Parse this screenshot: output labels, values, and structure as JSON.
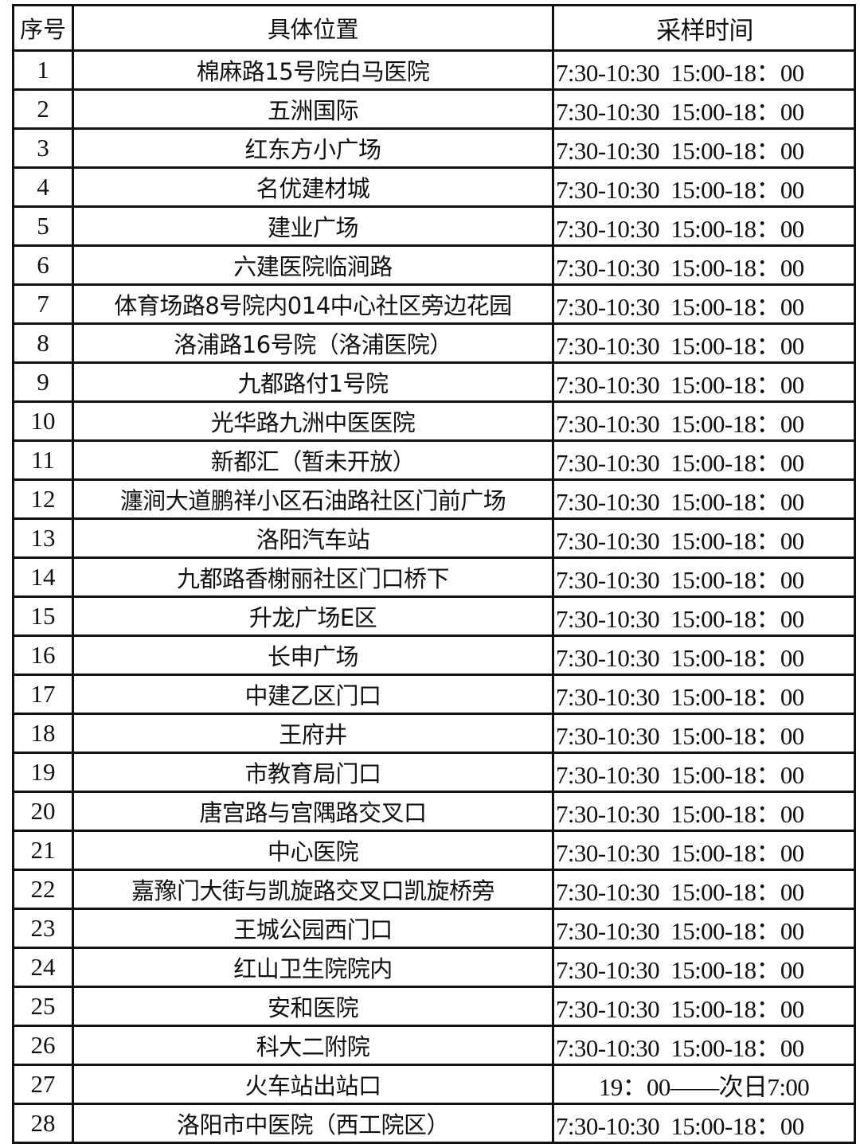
{
  "table": {
    "headers": [
      "序号",
      "具体位置",
      "采样时间"
    ],
    "rows": [
      {
        "no": "1",
        "location": "棉麻路15号院白马医院",
        "time": "7:30-10:30  15:00-18：00"
      },
      {
        "no": "2",
        "location": "五洲国际",
        "time": "7:30-10:30  15:00-18：00"
      },
      {
        "no": "3",
        "location": "红东方小广场",
        "time": "7:30-10:30  15:00-18：00"
      },
      {
        "no": "4",
        "location": "名优建材城",
        "time": "7:30-10:30  15:00-18：00"
      },
      {
        "no": "5",
        "location": "建业广场",
        "time": "7:30-10:30  15:00-18：00"
      },
      {
        "no": "6",
        "location": "六建医院临涧路",
        "time": "7:30-10:30  15:00-18：00"
      },
      {
        "no": "7",
        "location": "体育场路8号院内014中心社区旁边花园",
        "time": "7:30-10:30  15:00-18：00"
      },
      {
        "no": "8",
        "location": "洛浦路16号院（洛浦医院）",
        "time": "7:30-10:30  15:00-18：00"
      },
      {
        "no": "9",
        "location": "九都路付1号院",
        "time": "7:30-10:30  15:00-18：00"
      },
      {
        "no": "10",
        "location": "光华路九洲中医医院",
        "time": "7:30-10:30  15:00-18：00"
      },
      {
        "no": "11",
        "location": "新都汇（暂未开放）",
        "time": "7:30-10:30  15:00-18：00"
      },
      {
        "no": "12",
        "location": "瀍涧大道鹏祥小区石油路社区门前广场",
        "time": "7:30-10:30  15:00-18：00"
      },
      {
        "no": "13",
        "location": "洛阳汽车站",
        "time": "7:30-10:30  15:00-18：00"
      },
      {
        "no": "14",
        "location": "九都路香榭丽社区门口桥下",
        "time": "7:30-10:30  15:00-18：00"
      },
      {
        "no": "15",
        "location": "升龙广场E区",
        "time": "7:30-10:30  15:00-18：00"
      },
      {
        "no": "16",
        "location": "长申广场",
        "time": "7:30-10:30  15:00-18：00"
      },
      {
        "no": "17",
        "location": "中建乙区门口",
        "time": "7:30-10:30  15:00-18：00"
      },
      {
        "no": "18",
        "location": "王府井",
        "time": "7:30-10:30  15:00-18：00"
      },
      {
        "no": "19",
        "location": "市教育局门口",
        "time": "7:30-10:30  15:00-18：00"
      },
      {
        "no": "20",
        "location": "唐宫路与宫隅路交叉口",
        "time": "7:30-10:30  15:00-18：00"
      },
      {
        "no": "21",
        "location": "中心医院",
        "time": "7:30-10:30  15:00-18：00"
      },
      {
        "no": "22",
        "location": "嘉豫门大街与凯旋路交叉口凯旋桥旁",
        "time": "7:30-10:30  15:00-18：00"
      },
      {
        "no": "23",
        "location": "王城公园西门口",
        "time": "7:30-10:30  15:00-18：00"
      },
      {
        "no": "24",
        "location": "红山卫生院院内",
        "time": "7:30-10:30  15:00-18：00"
      },
      {
        "no": "25",
        "location": "安和医院",
        "time": "7:30-10:30  15:00-18：00"
      },
      {
        "no": "26",
        "location": "科大二附院",
        "time": "7:30-10:30  15:00-18：00"
      },
      {
        "no": "27",
        "location": "火车站出站口",
        "time": "19：00——次日7:00"
      },
      {
        "no": "28",
        "location": "洛阳市中医院（西工院区）",
        "time": "7:30-10:30  15:00-18：00"
      }
    ]
  }
}
